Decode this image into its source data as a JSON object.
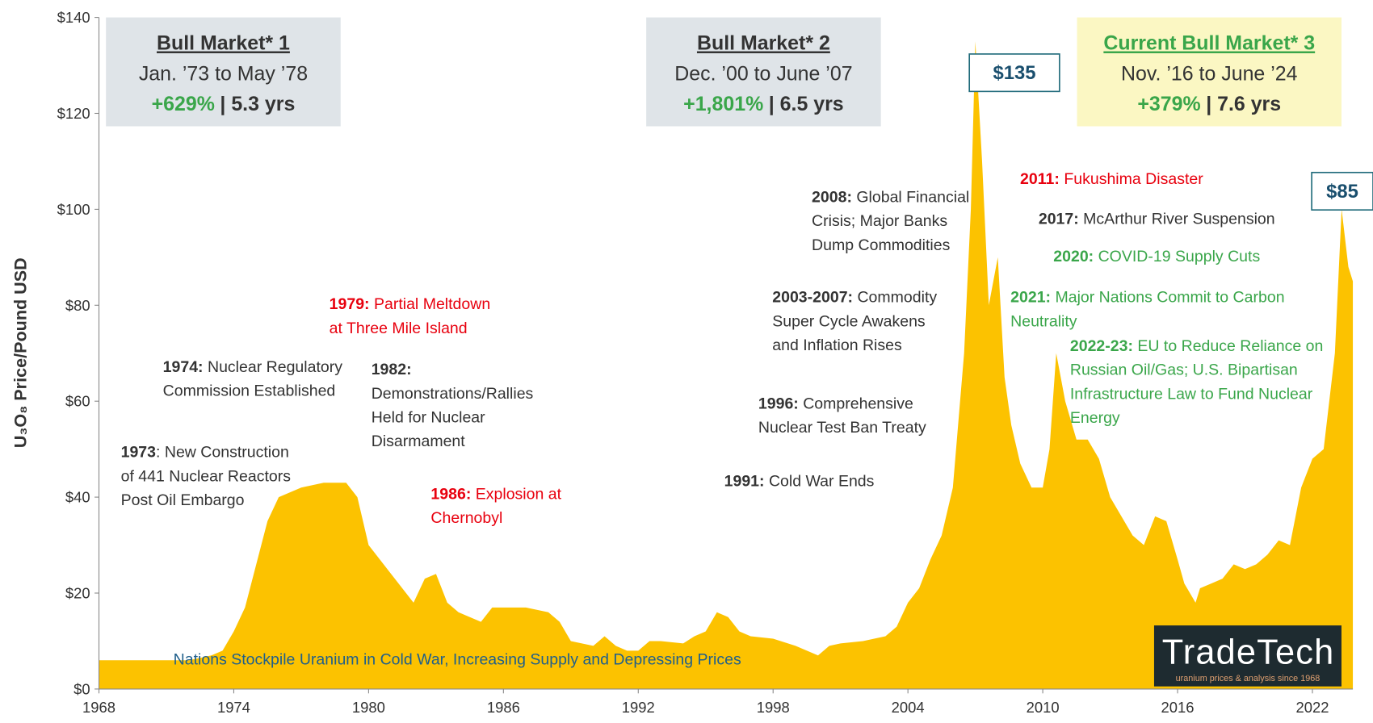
{
  "chart_data": {
    "type": "area",
    "ylabel": "U₃O₈ Price/Pound USD",
    "color": "#fcc200",
    "x": [
      1968,
      1970,
      1972,
      1973,
      1973.5,
      1974,
      1974.5,
      1975,
      1975.5,
      1976,
      1977,
      1978,
      1979,
      1979.5,
      1980,
      1980.5,
      1981,
      1982,
      1982.5,
      1983,
      1983.5,
      1984,
      1985,
      1985.5,
      1986,
      1987,
      1988,
      1988.5,
      1989,
      1990,
      1990.5,
      1991,
      1991.5,
      1992,
      1992.5,
      1993,
      1994,
      1994.5,
      1995,
      1995.5,
      1996,
      1996.5,
      1997,
      1998,
      1999,
      2000,
      2000.5,
      2001,
      2002,
      2003,
      2003.5,
      2004,
      2004.5,
      2005,
      2005.5,
      2006,
      2006.5,
      2006.8,
      2007,
      2007.3,
      2007.6,
      2008,
      2008.3,
      2008.6,
      2009,
      2009.5,
      2010,
      2010.3,
      2010.6,
      2011,
      2011.5,
      2012,
      2012.5,
      2013,
      2013.5,
      2014,
      2014.5,
      2015,
      2015.5,
      2016,
      2016.3,
      2016.8,
      2017,
      2017.5,
      2018,
      2018.5,
      2019,
      2019.5,
      2020,
      2020.5,
      2021,
      2021.5,
      2022,
      2022.5,
      2023,
      2023.3,
      2023.6,
      2023.8
    ],
    "values": [
      6,
      6,
      6,
      7,
      8,
      12,
      17,
      26,
      35,
      40,
      42,
      43,
      43,
      40,
      30,
      27,
      24,
      18,
      23,
      24,
      18,
      16,
      14,
      17,
      17,
      17,
      16,
      14,
      10,
      9,
      11,
      9,
      8,
      8,
      10,
      10,
      9.5,
      11,
      12,
      16,
      15,
      12,
      11,
      10.5,
      9,
      7,
      9,
      9.5,
      10,
      11,
      13,
      18,
      21,
      27,
      32,
      42,
      70,
      100,
      135,
      110,
      80,
      90,
      65,
      55,
      47,
      42,
      42,
      50,
      70,
      60,
      52,
      52,
      48,
      40,
      36,
      32,
      30,
      36,
      35,
      27,
      22,
      18,
      21,
      22,
      23,
      26,
      25,
      26,
      28,
      31,
      30,
      42,
      48,
      50,
      70,
      100,
      88,
      85
    ],
    "xlim": [
      1968,
      2023.8
    ],
    "ylim": [
      0,
      140
    ],
    "xticks": [
      1968,
      1974,
      1980,
      1986,
      1992,
      1998,
      2004,
      2010,
      2016,
      2022
    ],
    "yticks": [
      {
        "value": 0,
        "label": "$0"
      },
      {
        "value": 20,
        "label": "$20"
      },
      {
        "value": 40,
        "label": "$40"
      },
      {
        "value": 60,
        "label": "$60"
      },
      {
        "value": 80,
        "label": "$80"
      },
      {
        "value": 100,
        "label": "$100"
      },
      {
        "value": 120,
        "label": "$120"
      },
      {
        "value": 140,
        "label": "$140"
      }
    ],
    "callouts": [
      {
        "value": 135,
        "label": "$135"
      },
      {
        "value": 85,
        "label": "$85"
      }
    ],
    "bull_markets": [
      {
        "title": "Bull Market* 1",
        "dates": "Jan. ’73 to May ’78",
        "gain": "+629%",
        "duration": "| 5.3 yrs"
      },
      {
        "title": "Bull Market* 2",
        "dates": "Dec. ’00 to June ’07",
        "gain": "+1,801%",
        "duration": "| 6.5 yrs"
      },
      {
        "title": "Current Bull Market* 3",
        "dates": "Nov. ’16 to June ’24",
        "gain": "+379%",
        "duration": "| 7.6 yrs"
      }
    ],
    "annotations": [
      {
        "label": "1973",
        "lines": [
          ": New Construction",
          "of 441 Nuclear Reactors",
          "Post Oil Embargo"
        ],
        "color": "#333333"
      },
      {
        "label": "1974:",
        "lines": [
          " Nuclear Regulatory",
          "Commission Established"
        ],
        "color": "#333333"
      },
      {
        "label": "1979:",
        "lines": [
          " Partial Meltdown",
          "at Three Mile Island"
        ],
        "color": "#e8000e"
      },
      {
        "label": "1982:",
        "lines": [
          "Demonstrations/Rallies",
          "Held for Nuclear",
          "Disarmament"
        ],
        "color": "#333333"
      },
      {
        "label": "1986:",
        "lines": [
          " Explosion at",
          "Chernobyl"
        ],
        "color": "#e8000e"
      },
      {
        "label": "1991:",
        "lines": [
          " Cold War Ends"
        ],
        "color": "#333333"
      },
      {
        "label": "1996:",
        "lines": [
          " Comprehensive",
          "Nuclear Test Ban Treaty"
        ],
        "color": "#333333"
      },
      {
        "label": "2003-2007:",
        "lines": [
          " Commodity",
          "Super Cycle Awakens",
          "and Inflation Rises"
        ],
        "color": "#333333"
      },
      {
        "label": "2008:",
        "lines": [
          " Global Financial",
          "Crisis; Major Banks",
          "Dump Commodities"
        ],
        "color": "#333333"
      },
      {
        "label": "2011:",
        "lines": [
          " Fukushima Disaster"
        ],
        "color": "#e8000e"
      },
      {
        "label": "2017:",
        "lines": [
          " McArthur River Suspension"
        ],
        "color": "#333333"
      },
      {
        "label": "2020:",
        "lines": [
          " COVID-19 Supply Cuts"
        ],
        "color": "#3aa64a"
      },
      {
        "label": "2021:",
        "lines": [
          " Major Nations Commit to Carbon",
          "Neutrality"
        ],
        "color": "#3aa64a"
      },
      {
        "label": "2022-23:",
        "lines": [
          " EU to Reduce Reliance on",
          "Russian Oil/Gas; U.S. Bipartisan",
          "Infrastructure Law to Fund Nuclear",
          "Energy"
        ],
        "color": "#3aa64a"
      },
      {
        "lines": [
          "Nations Stockpile Uranium in Cold War, Increasing Supply and Depressing Prices"
        ],
        "color": "#1f5f8b"
      }
    ],
    "logo": {
      "name": "TradeTech",
      "tagline": "uranium prices & analysis since 1968"
    }
  }
}
